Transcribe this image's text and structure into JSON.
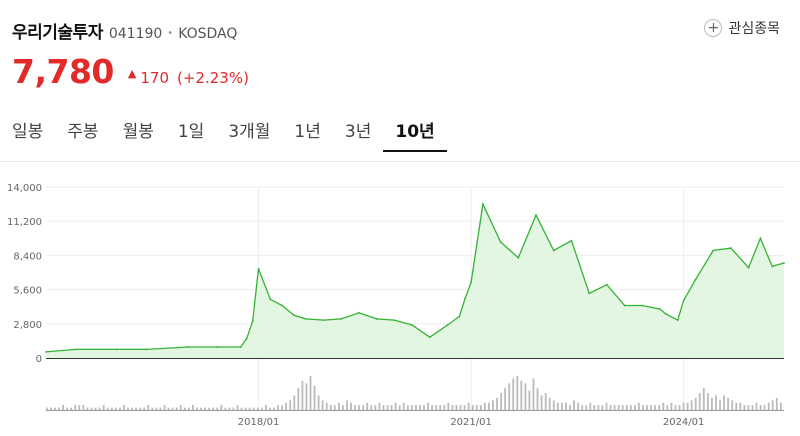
{
  "header": {
    "name": "우리기술투자",
    "code": "041190",
    "dot": "•",
    "market": "KOSDAQ",
    "favorite_icon": "plus-icon",
    "favorite_label": "관심종목"
  },
  "price": {
    "current": "7,780",
    "change_icon": "▲",
    "change": "170",
    "change_pct": "(+2.23%)",
    "color": "#e22a2a"
  },
  "tabs": [
    {
      "label": "일봉"
    },
    {
      "label": "주봉"
    },
    {
      "label": "월봉"
    },
    {
      "label": "1일"
    },
    {
      "label": "3개월"
    },
    {
      "label": "1년"
    },
    {
      "label": "3년"
    },
    {
      "label": "10년",
      "active": true
    }
  ],
  "chart_data": {
    "type": "area",
    "line_color": "#35b135",
    "fill_color": "#e2f6e2",
    "ylim": [
      0,
      14000
    ],
    "ytick_labels": [
      "0",
      "2,800",
      "5,600",
      "8,400",
      "11,200",
      "14,000"
    ],
    "xtick_labels": [
      "2018/01",
      "2021/01",
      "2024/01"
    ],
    "xdomain": [
      "2015-01",
      "2025-06"
    ],
    "grid": true,
    "series": [
      {
        "x": [
          "2015-01",
          "2015-06",
          "2016-01",
          "2016-06",
          "2017-01",
          "2017-06",
          "2017-10",
          "2017-11",
          "2017-12",
          "2018-01",
          "2018-03",
          "2018-05",
          "2018-07",
          "2018-09",
          "2018-12",
          "2019-03",
          "2019-06",
          "2019-09",
          "2019-12",
          "2020-03",
          "2020-06",
          "2020-09",
          "2020-11",
          "2020-12",
          "2021-01",
          "2021-03",
          "2021-06",
          "2021-09",
          "2021-12",
          "2022-03",
          "2022-06",
          "2022-09",
          "2022-12",
          "2023-03",
          "2023-06",
          "2023-09",
          "2023-10",
          "2023-12",
          "2024-01",
          "2024-03",
          "2024-06",
          "2024-09",
          "2024-12",
          "2025-02",
          "2025-04",
          "2025-06"
        ],
        "values": [
          500,
          700,
          700,
          700,
          900,
          900,
          900,
          1600,
          3000,
          7300,
          4800,
          4300,
          3500,
          3200,
          3100,
          3200,
          3700,
          3200,
          3100,
          2700,
          1700,
          2700,
          3400,
          4900,
          6200,
          12600,
          9500,
          8200,
          11700,
          8800,
          9600,
          5300,
          6000,
          4300,
          4300,
          4000,
          3600,
          3100,
          4700,
          6400,
          8800,
          9000,
          7400,
          9800,
          7500,
          7780
        ]
      }
    ],
    "volume": [
      1,
      1,
      1,
      1,
      2,
      1,
      1,
      2,
      2,
      2,
      1,
      1,
      1,
      1,
      2,
      1,
      1,
      1,
      1,
      2,
      1,
      1,
      1,
      1,
      1,
      2,
      1,
      1,
      1,
      2,
      1,
      1,
      1,
      2,
      1,
      1,
      2,
      1,
      1,
      1,
      1,
      1,
      1,
      2,
      1,
      1,
      1,
      2,
      1,
      1,
      1,
      1,
      1,
      1,
      2,
      1,
      1,
      2,
      2,
      3,
      4,
      6,
      9,
      12,
      11,
      14,
      10,
      6,
      4,
      3,
      2,
      2,
      3,
      2,
      4,
      3,
      2,
      2,
      2,
      3,
      2,
      2,
      3,
      2,
      2,
      2,
      3,
      2,
      3,
      2,
      2,
      2,
      2,
      2,
      3,
      2,
      2,
      2,
      2,
      3,
      2,
      2,
      2,
      2,
      3,
      2,
      2,
      2,
      3,
      3,
      4,
      5,
      7,
      9,
      11,
      13,
      14,
      12,
      11,
      8,
      13,
      9,
      6,
      7,
      5,
      4,
      3,
      3,
      3,
      2,
      4,
      3,
      2,
      2,
      3,
      2,
      2,
      2,
      3,
      2,
      2,
      2,
      2,
      2,
      2,
      2,
      3,
      2,
      2,
      2,
      2,
      2,
      3,
      2,
      3,
      2,
      2,
      3,
      3,
      4,
      5,
      7,
      9,
      7,
      5,
      6,
      4,
      6,
      5,
      4,
      3,
      3,
      2,
      2,
      2,
      3,
      2,
      2,
      3,
      4,
      5,
      3
    ]
  }
}
